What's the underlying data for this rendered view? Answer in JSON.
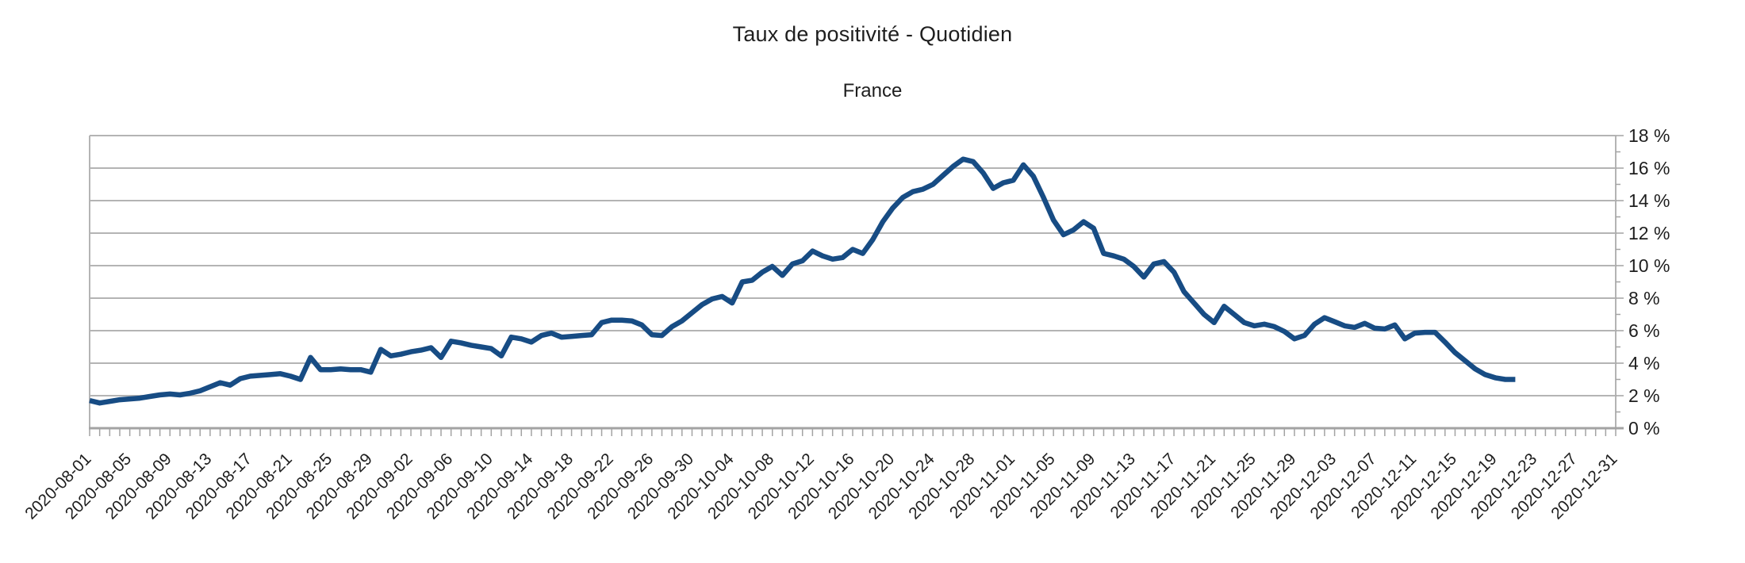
{
  "page": {
    "background": "#ffffff"
  },
  "chart_data": {
    "type": "line",
    "title": "Taux de positivité - Quotidien",
    "subtitle": "France",
    "legend": "none",
    "grid": "horizontal",
    "y_axis_side": "right",
    "ylim": [
      0,
      18
    ],
    "y_major_step": 2,
    "y_minor_step": 1,
    "y_unit": "%",
    "y_tick_labels": [
      "18 %",
      "16 %",
      "14 %",
      "12 %",
      "10 %",
      "8 %",
      "6 %",
      "4 %",
      "2 %",
      "0 %"
    ],
    "x_axis_start": "2020-08-01",
    "x_axis_end": "2020-12-31",
    "x_axis_total_days": 152,
    "x_label_step_days": 4,
    "x_minor_tick_step_days": 1,
    "x_tick_labels": [
      "2020-08-01",
      "2020-08-05",
      "2020-08-09",
      "2020-08-13",
      "2020-08-17",
      "2020-08-21",
      "2020-08-25",
      "2020-08-29",
      "2020-09-02",
      "2020-09-06",
      "2020-09-10",
      "2020-09-14",
      "2020-09-18",
      "2020-09-22",
      "2020-09-26",
      "2020-09-30",
      "2020-10-04",
      "2020-10-08",
      "2020-10-12",
      "2020-10-16",
      "2020-10-20",
      "2020-10-24",
      "2020-10-28",
      "2020-11-01",
      "2020-11-05",
      "2020-11-09",
      "2020-11-13",
      "2020-11-17",
      "2020-11-21",
      "2020-11-25",
      "2020-11-29",
      "2020-12-03",
      "2020-12-07",
      "2020-12-11",
      "2020-12-15",
      "2020-12-19",
      "2020-12-23",
      "2020-12-27",
      "2020-12-31"
    ],
    "colors": {
      "line": "#174C84",
      "grid": "#b4b4b4",
      "axis": "#a3a3a3",
      "text": "#1e1e1e"
    },
    "series_start_date": "2020-08-01",
    "series_end_date": "2020-12-21",
    "dates": [
      "2020-08-01",
      "2020-08-02",
      "2020-08-03",
      "2020-08-04",
      "2020-08-05",
      "2020-08-06",
      "2020-08-07",
      "2020-08-08",
      "2020-08-09",
      "2020-08-10",
      "2020-08-11",
      "2020-08-12",
      "2020-08-13",
      "2020-08-14",
      "2020-08-15",
      "2020-08-16",
      "2020-08-17",
      "2020-08-18",
      "2020-08-19",
      "2020-08-20",
      "2020-08-21",
      "2020-08-22",
      "2020-08-23",
      "2020-08-24",
      "2020-08-25",
      "2020-08-26",
      "2020-08-27",
      "2020-08-28",
      "2020-08-29",
      "2020-08-30",
      "2020-08-31",
      "2020-09-01",
      "2020-09-02",
      "2020-09-03",
      "2020-09-04",
      "2020-09-05",
      "2020-09-06",
      "2020-09-07",
      "2020-09-08",
      "2020-09-09",
      "2020-09-10",
      "2020-09-11",
      "2020-09-12",
      "2020-09-13",
      "2020-09-14",
      "2020-09-15",
      "2020-09-16",
      "2020-09-17",
      "2020-09-18",
      "2020-09-19",
      "2020-09-20",
      "2020-09-21",
      "2020-09-22",
      "2020-09-23",
      "2020-09-24",
      "2020-09-25",
      "2020-09-26",
      "2020-09-27",
      "2020-09-28",
      "2020-09-29",
      "2020-09-30",
      "2020-10-01",
      "2020-10-02",
      "2020-10-03",
      "2020-10-04",
      "2020-10-05",
      "2020-10-06",
      "2020-10-07",
      "2020-10-08",
      "2020-10-09",
      "2020-10-10",
      "2020-10-11",
      "2020-10-12",
      "2020-10-13",
      "2020-10-14",
      "2020-10-15",
      "2020-10-16",
      "2020-10-17",
      "2020-10-18",
      "2020-10-19",
      "2020-10-20",
      "2020-10-21",
      "2020-10-22",
      "2020-10-23",
      "2020-10-24",
      "2020-10-25",
      "2020-10-26",
      "2020-10-27",
      "2020-10-28",
      "2020-10-29",
      "2020-10-30",
      "2020-10-31",
      "2020-11-01",
      "2020-11-02",
      "2020-11-03",
      "2020-11-04",
      "2020-11-05",
      "2020-11-06",
      "2020-11-07",
      "2020-11-08",
      "2020-11-09",
      "2020-11-10",
      "2020-11-11",
      "2020-11-12",
      "2020-11-13",
      "2020-11-14",
      "2020-11-15",
      "2020-11-16",
      "2020-11-17",
      "2020-11-18",
      "2020-11-19",
      "2020-11-20",
      "2020-11-21",
      "2020-11-22",
      "2020-11-23",
      "2020-11-24",
      "2020-11-25",
      "2020-11-26",
      "2020-11-27",
      "2020-11-28",
      "2020-11-29",
      "2020-11-30",
      "2020-12-01",
      "2020-12-02",
      "2020-12-03",
      "2020-12-04",
      "2020-12-05",
      "2020-12-06",
      "2020-12-07",
      "2020-12-08",
      "2020-12-09",
      "2020-12-10",
      "2020-12-11",
      "2020-12-12",
      "2020-12-13",
      "2020-12-14",
      "2020-12-15",
      "2020-12-16",
      "2020-12-17",
      "2020-12-18",
      "2020-12-19",
      "2020-12-20",
      "2020-12-21"
    ],
    "values": [
      1.7,
      1.55,
      1.65,
      1.75,
      1.8,
      1.85,
      1.95,
      2.05,
      2.1,
      2.05,
      2.15,
      2.3,
      2.55,
      2.8,
      2.65,
      3.05,
      3.2,
      3.25,
      3.3,
      3.35,
      3.2,
      3.0,
      4.35,
      3.6,
      3.6,
      3.65,
      3.6,
      3.6,
      3.45,
      4.85,
      4.45,
      4.55,
      4.7,
      4.8,
      4.95,
      4.35,
      5.35,
      5.25,
      5.1,
      5.0,
      4.9,
      4.45,
      5.6,
      5.5,
      5.3,
      5.7,
      5.85,
      5.6,
      5.65,
      5.7,
      5.75,
      6.5,
      6.65,
      6.65,
      6.6,
      6.35,
      5.75,
      5.7,
      6.25,
      6.6,
      7.1,
      7.6,
      7.95,
      8.1,
      7.7,
      9.0,
      9.1,
      9.6,
      9.95,
      9.4,
      10.1,
      10.3,
      10.9,
      10.6,
      10.4,
      10.5,
      11.0,
      10.75,
      11.6,
      12.7,
      13.55,
      14.2,
      14.55,
      14.7,
      15.0,
      15.55,
      16.1,
      16.55,
      16.4,
      15.7,
      14.75,
      15.1,
      15.25,
      16.2,
      15.5,
      14.2,
      12.8,
      11.9,
      12.2,
      12.7,
      12.3,
      10.75,
      10.6,
      10.4,
      9.95,
      9.3,
      10.1,
      10.25,
      9.6,
      8.4,
      7.7,
      7.0,
      6.5,
      7.5,
      7.0,
      6.5,
      6.3,
      6.4,
      6.25,
      5.95,
      5.5,
      5.7,
      6.4,
      6.8,
      6.55,
      6.3,
      6.2,
      6.45,
      6.15,
      6.1,
      6.35,
      5.5,
      5.85,
      5.9,
      5.9,
      5.3,
      4.65,
      4.15,
      3.65,
      3.3,
      3.1,
      3.0,
      3.0
    ]
  }
}
